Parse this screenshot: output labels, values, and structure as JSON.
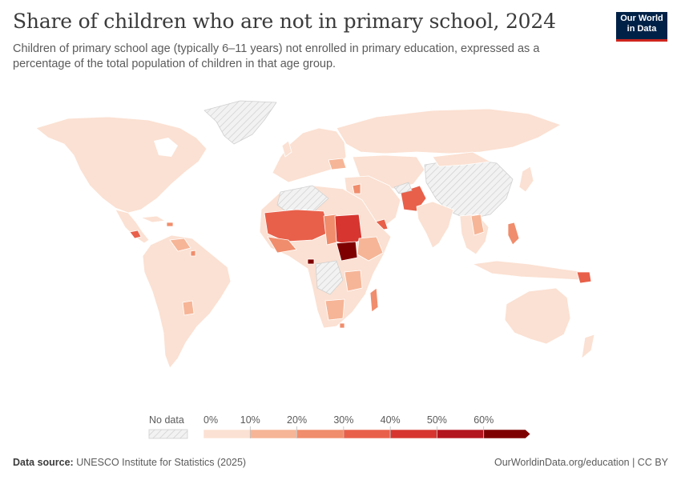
{
  "header": {
    "title": "Share of children who are not in primary school, 2024",
    "subtitle": "Children of primary school age (typically 6–11 years) not enrolled in primary education, expressed as a percentage of the total population of children in that age group."
  },
  "logo": {
    "line1": "Our World",
    "line2": "in Data"
  },
  "legend": {
    "no_data_label": "No data",
    "ticks": [
      "0%",
      "10%",
      "20%",
      "30%",
      "40%",
      "50%",
      "60%"
    ],
    "colors": [
      "#fbe1d3",
      "#f6b597",
      "#f08d6c",
      "#e8604a",
      "#d6362f",
      "#b3151e",
      "#7f0000"
    ]
  },
  "footer": {
    "source_label": "Data source:",
    "source_text": "UNESCO Institute for Statistics (2025)",
    "link": "OurWorldinData.org/education | CC BY"
  },
  "map_style": {
    "base_color": "#fbe1d3",
    "border_color": "#ffffff",
    "no_data_fill": "#eeeeee",
    "hatch_color": "#cccccc"
  }
}
